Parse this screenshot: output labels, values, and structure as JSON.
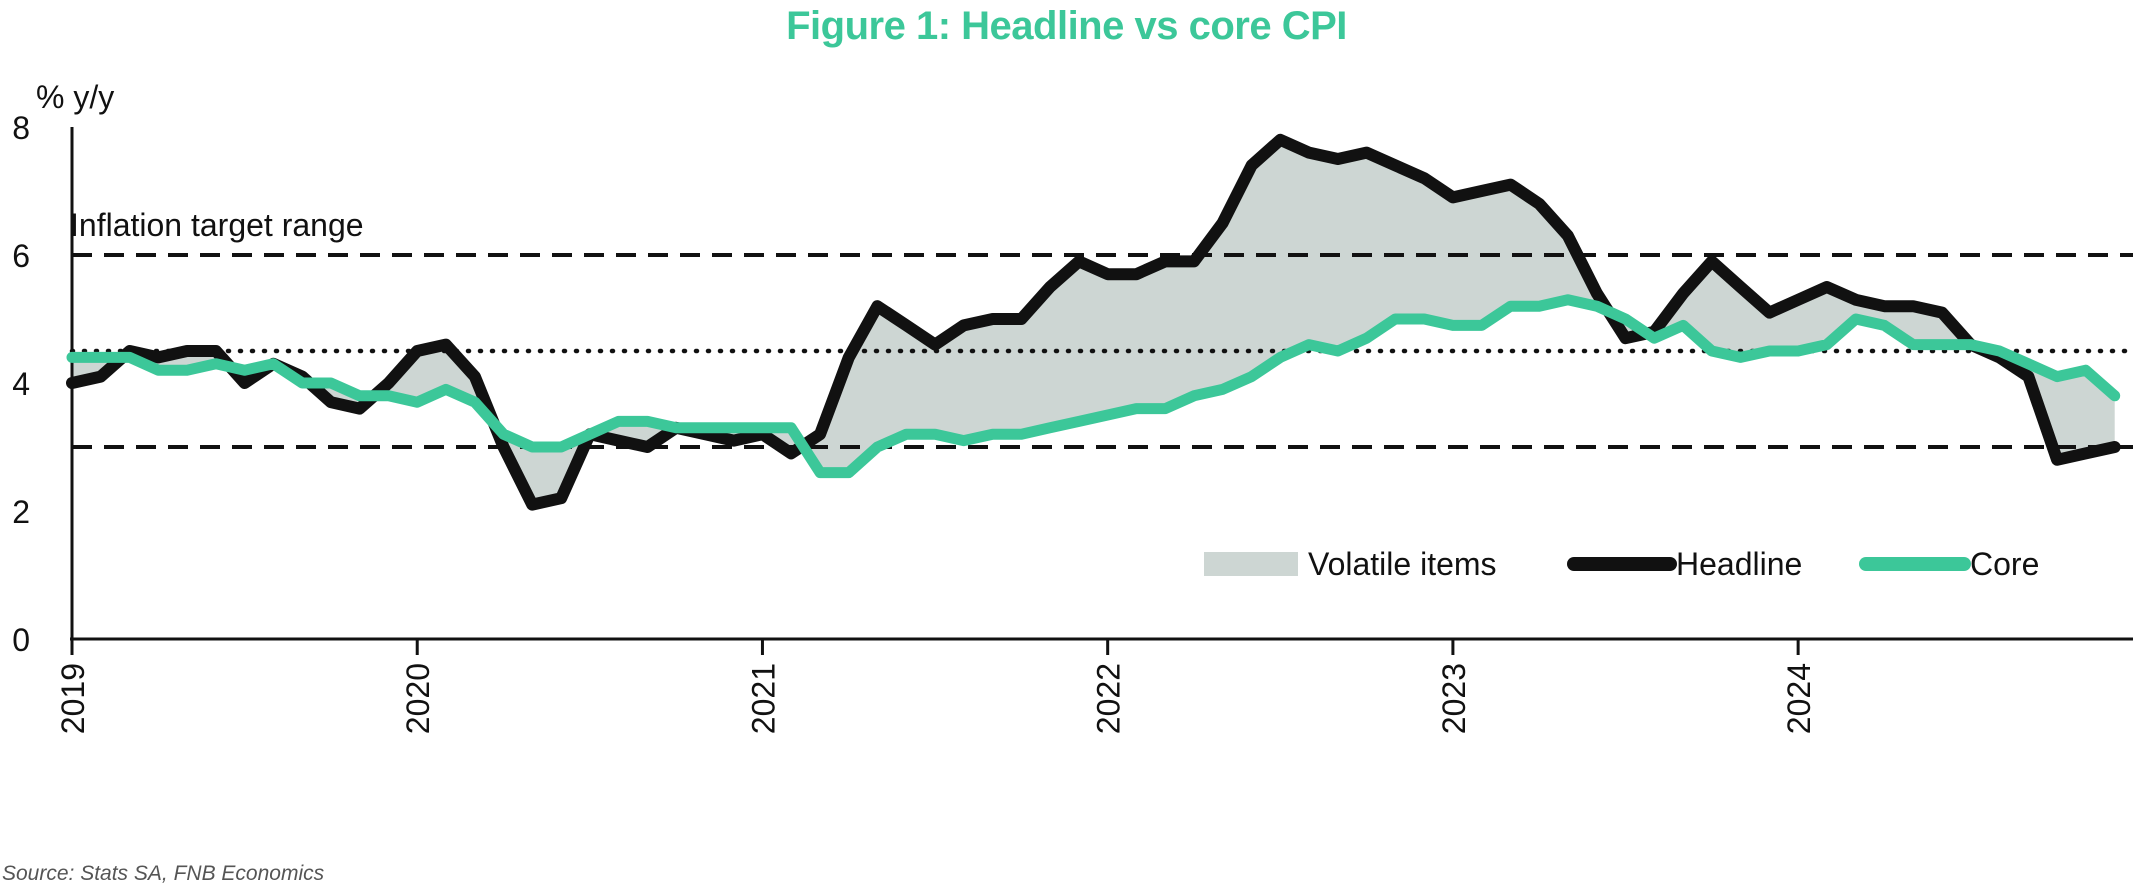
{
  "title": "Figure 1: Headline vs core CPI",
  "source": "Source: Stats SA, FNB Economics",
  "colors": {
    "title": "#3cc799",
    "headline": "#111111",
    "core": "#3cc799",
    "volatile_fill": "#cdd6d3"
  },
  "chart_data": {
    "type": "line",
    "title": "Figure 1: Headline vs core CPI",
    "ylabel": "% y/y",
    "xlabel": "",
    "ylim": [
      0,
      8
    ],
    "yticks": [
      "0",
      "2",
      "4",
      "6",
      "8"
    ],
    "xlim": [
      2019.0,
      2024.97
    ],
    "xticks": [
      "2019",
      "2020",
      "2021",
      "2022",
      "2023",
      "2024"
    ],
    "grid": false,
    "legend_position": "bottom-right",
    "legend": [
      "Volatile items",
      "Headline",
      "Core"
    ],
    "annotations": [
      {
        "text": "Inflation target range",
        "type": "band",
        "lower": 3,
        "upper": 6,
        "midpoint": 4.5
      }
    ],
    "shaded_area": {
      "name": "Volatile items",
      "between": [
        "Headline",
        "Core"
      ]
    },
    "series": [
      {
        "name": "Headline",
        "x": [
          2019.0,
          2019.083,
          2019.167,
          2019.25,
          2019.333,
          2019.417,
          2019.5,
          2019.583,
          2019.667,
          2019.75,
          2019.833,
          2019.917,
          2020.0,
          2020.083,
          2020.167,
          2020.25,
          2020.333,
          2020.417,
          2020.5,
          2020.583,
          2020.667,
          2020.75,
          2020.833,
          2020.917,
          2021.0,
          2021.083,
          2021.167,
          2021.25,
          2021.333,
          2021.417,
          2021.5,
          2021.583,
          2021.667,
          2021.75,
          2021.833,
          2021.917,
          2022.0,
          2022.083,
          2022.167,
          2022.25,
          2022.333,
          2022.417,
          2022.5,
          2022.583,
          2022.667,
          2022.75,
          2022.833,
          2022.917,
          2023.0,
          2023.083,
          2023.167,
          2023.25,
          2023.333,
          2023.417,
          2023.5,
          2023.583,
          2023.667,
          2023.75,
          2023.833,
          2023.917,
          2024.0,
          2024.083,
          2024.167,
          2024.25,
          2024.333,
          2024.417,
          2024.5,
          2024.583,
          2024.667,
          2024.75,
          2024.833,
          2024.917
        ],
        "values": [
          4.0,
          4.1,
          4.5,
          4.4,
          4.5,
          4.5,
          4.0,
          4.3,
          4.1,
          3.7,
          3.6,
          4.0,
          4.5,
          4.6,
          4.1,
          3.0,
          2.1,
          2.2,
          3.2,
          3.1,
          3.0,
          3.3,
          3.2,
          3.1,
          3.2,
          2.9,
          3.2,
          4.4,
          5.2,
          4.9,
          4.6,
          4.9,
          5.0,
          5.0,
          5.5,
          5.9,
          5.7,
          5.7,
          5.9,
          5.9,
          6.5,
          7.4,
          7.8,
          7.6,
          7.5,
          7.6,
          7.4,
          7.2,
          6.9,
          7.0,
          7.1,
          6.8,
          6.3,
          5.4,
          4.7,
          4.8,
          5.4,
          5.9,
          5.5,
          5.1,
          5.3,
          5.5,
          5.3,
          5.2,
          5.2,
          5.1,
          4.6,
          4.4,
          4.1,
          2.8,
          2.9,
          3.0
        ]
      },
      {
        "name": "Core",
        "x": [
          2019.0,
          2019.083,
          2019.167,
          2019.25,
          2019.333,
          2019.417,
          2019.5,
          2019.583,
          2019.667,
          2019.75,
          2019.833,
          2019.917,
          2020.0,
          2020.083,
          2020.167,
          2020.25,
          2020.333,
          2020.417,
          2020.5,
          2020.583,
          2020.667,
          2020.75,
          2020.833,
          2020.917,
          2021.0,
          2021.083,
          2021.167,
          2021.25,
          2021.333,
          2021.417,
          2021.5,
          2021.583,
          2021.667,
          2021.75,
          2021.833,
          2021.917,
          2022.0,
          2022.083,
          2022.167,
          2022.25,
          2022.333,
          2022.417,
          2022.5,
          2022.583,
          2022.667,
          2022.75,
          2022.833,
          2022.917,
          2023.0,
          2023.083,
          2023.167,
          2023.25,
          2023.333,
          2023.417,
          2023.5,
          2023.583,
          2023.667,
          2023.75,
          2023.833,
          2023.917,
          2024.0,
          2024.083,
          2024.167,
          2024.25,
          2024.333,
          2024.417,
          2024.5,
          2024.583,
          2024.667,
          2024.75,
          2024.833,
          2024.917
        ],
        "values": [
          4.4,
          4.4,
          4.4,
          4.2,
          4.2,
          4.3,
          4.2,
          4.3,
          4.0,
          4.0,
          3.8,
          3.8,
          3.7,
          3.9,
          3.7,
          3.2,
          3.0,
          3.0,
          3.2,
          3.4,
          3.4,
          3.3,
          3.3,
          3.3,
          3.3,
          3.3,
          2.6,
          2.6,
          3.0,
          3.2,
          3.2,
          3.1,
          3.2,
          3.2,
          3.3,
          3.4,
          3.5,
          3.6,
          3.6,
          3.8,
          3.9,
          4.1,
          4.4,
          4.6,
          4.5,
          4.7,
          5.0,
          5.0,
          4.9,
          4.9,
          5.2,
          5.2,
          5.3,
          5.2,
          5.0,
          4.7,
          4.9,
          4.5,
          4.4,
          4.5,
          4.5,
          4.6,
          5.0,
          4.9,
          4.6,
          4.6,
          4.6,
          4.5,
          4.3,
          4.1,
          4.2,
          3.8
        ]
      }
    ]
  }
}
